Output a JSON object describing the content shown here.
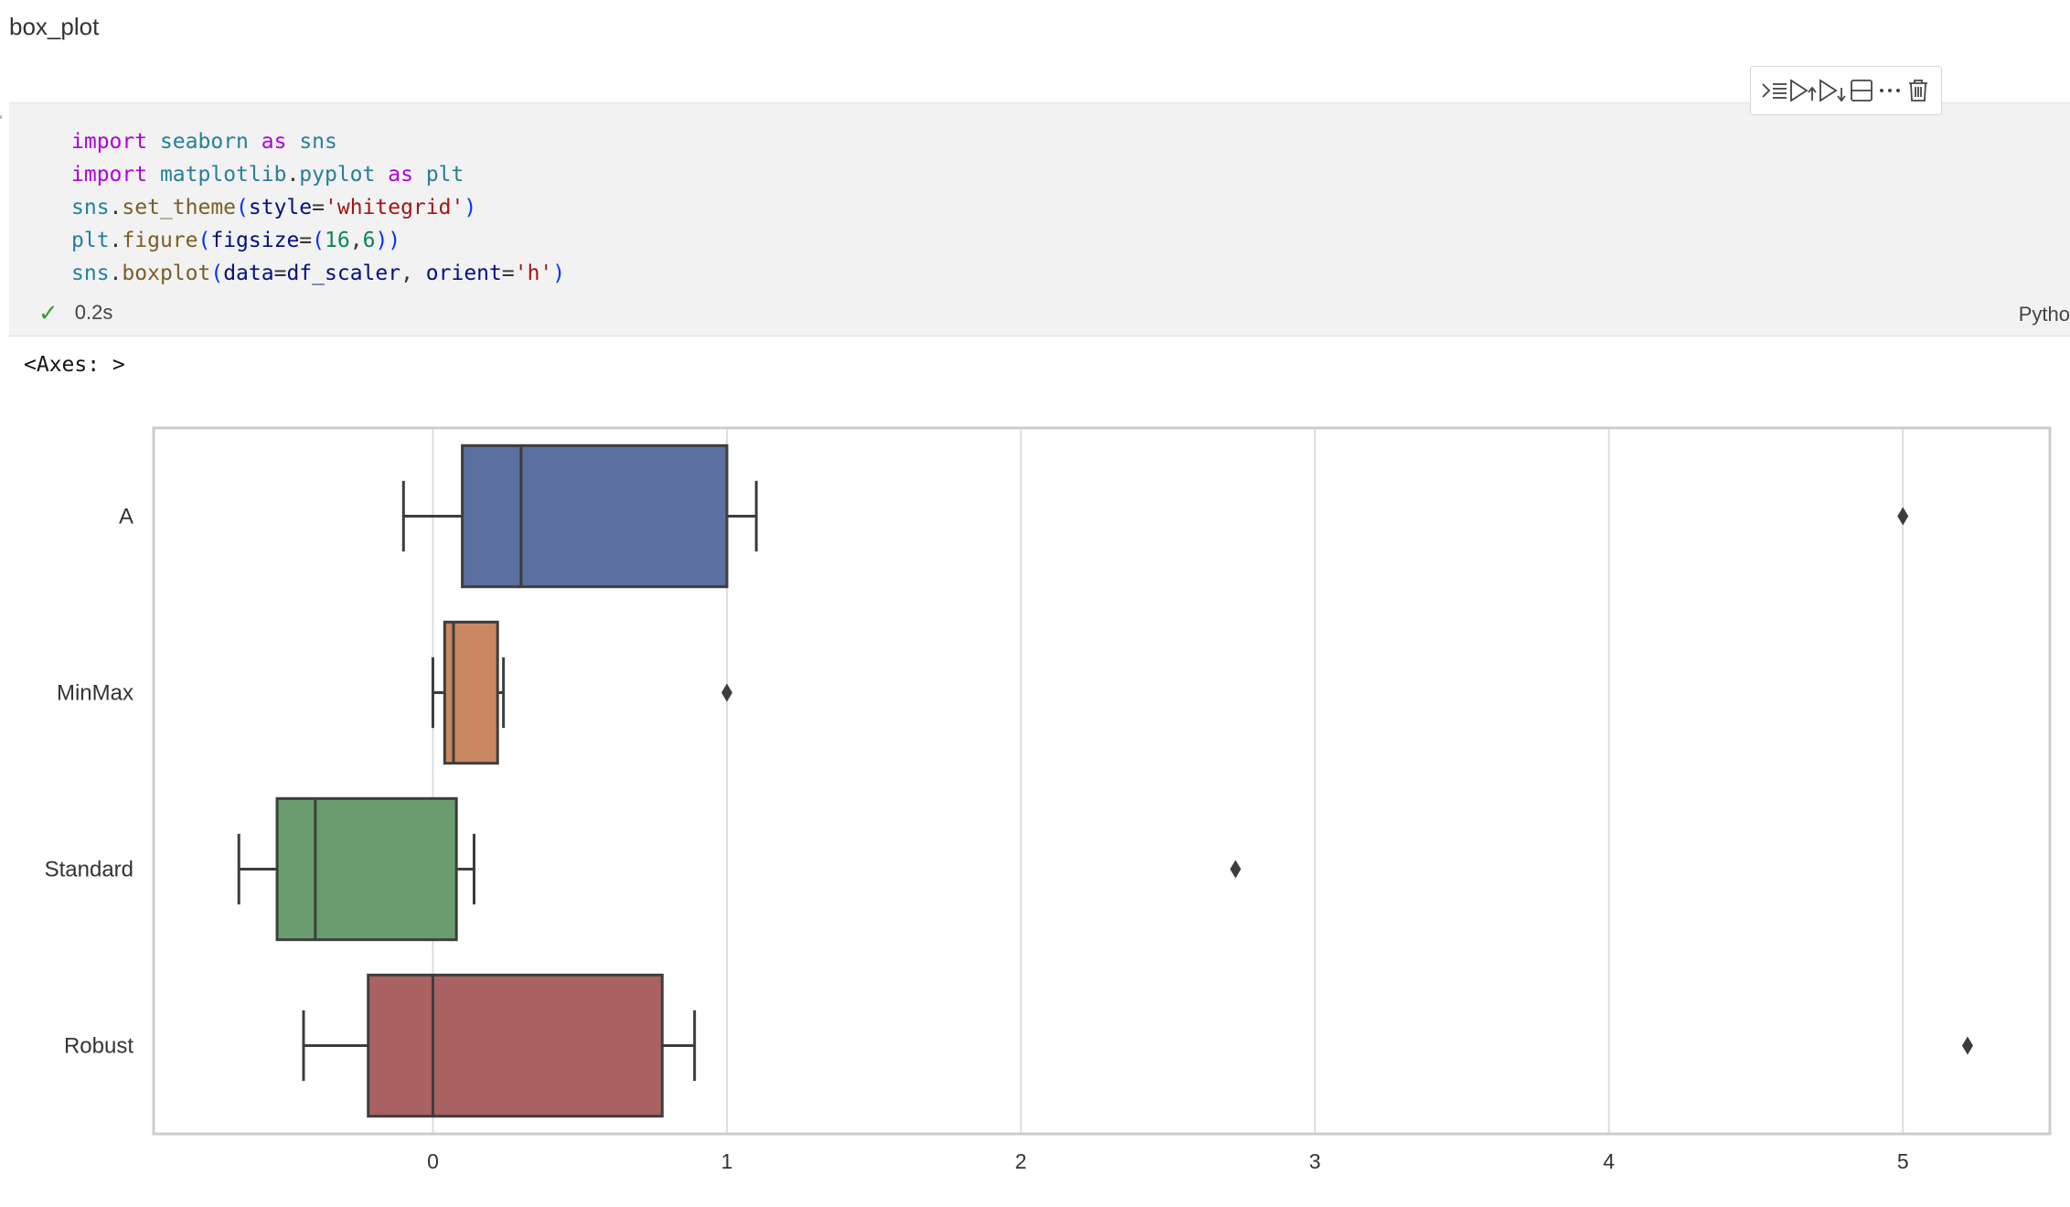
{
  "markdown": {
    "heading": "box_plot"
  },
  "cell": {
    "code_lines": [
      [
        {
          "t": "import",
          "c": "kw"
        },
        {
          "t": " "
        },
        {
          "t": "seaborn",
          "c": "mod"
        },
        {
          "t": " "
        },
        {
          "t": "as",
          "c": "kw"
        },
        {
          "t": " "
        },
        {
          "t": "sns",
          "c": "mod"
        }
      ],
      [
        {
          "t": "import",
          "c": "kw"
        },
        {
          "t": " "
        },
        {
          "t": "matplotlib",
          "c": "mod"
        },
        {
          "t": "."
        },
        {
          "t": "pyplot",
          "c": "mod"
        },
        {
          "t": " "
        },
        {
          "t": "as",
          "c": "kw"
        },
        {
          "t": " "
        },
        {
          "t": "plt",
          "c": "mod"
        }
      ],
      [
        {
          "t": "sns",
          "c": "mod"
        },
        {
          "t": "."
        },
        {
          "t": "set_theme",
          "c": "fn"
        },
        {
          "t": "(",
          "c": "pun"
        },
        {
          "t": "style",
          "c": "var"
        },
        {
          "t": "="
        },
        {
          "t": "'whitegrid'",
          "c": "str"
        },
        {
          "t": ")",
          "c": "pun"
        }
      ],
      [
        {
          "t": "plt",
          "c": "mod"
        },
        {
          "t": "."
        },
        {
          "t": "figure",
          "c": "fn"
        },
        {
          "t": "(",
          "c": "pun"
        },
        {
          "t": "figsize",
          "c": "var"
        },
        {
          "t": "="
        },
        {
          "t": "(",
          "c": "pun"
        },
        {
          "t": "16",
          "c": "num"
        },
        {
          "t": ","
        },
        {
          "t": "6",
          "c": "num"
        },
        {
          "t": "))",
          "c": "pun"
        }
      ],
      [
        {
          "t": "sns",
          "c": "mod"
        },
        {
          "t": "."
        },
        {
          "t": "boxplot",
          "c": "fn"
        },
        {
          "t": "(",
          "c": "pun"
        },
        {
          "t": "data",
          "c": "var"
        },
        {
          "t": "="
        },
        {
          "t": "df_scaler",
          "c": "var"
        },
        {
          "t": ", "
        },
        {
          "t": "orient",
          "c": "var"
        },
        {
          "t": "="
        },
        {
          "t": "'h'",
          "c": "str"
        },
        {
          "t": ")",
          "c": "pun"
        }
      ]
    ],
    "status_time": "0.2s",
    "language": "Pytho"
  },
  "toolbar": {
    "buttons": [
      {
        "name": "run-by-line-button",
        "icon": "run-by-line-icon"
      },
      {
        "name": "execute-above-button",
        "icon": "execute-above-icon"
      },
      {
        "name": "execute-below-button",
        "icon": "execute-below-icon"
      },
      {
        "name": "split-cell-button",
        "icon": "split-cell-icon"
      },
      {
        "name": "more-actions-button",
        "icon": "ellipsis-icon"
      },
      {
        "name": "delete-cell-button",
        "icon": "trash-icon"
      }
    ]
  },
  "output": {
    "label": "<Axes: >"
  },
  "chart_data": {
    "type": "boxplot",
    "orientation": "horizontal",
    "xlim": [
      -0.95,
      5.5
    ],
    "xticks": [
      0,
      1,
      2,
      3,
      4,
      5
    ],
    "grid": true,
    "series": [
      {
        "name": "A",
        "color": "#5b6fa0",
        "whisker_low": -0.1,
        "q1": 0.1,
        "median": 0.3,
        "q3": 1.0,
        "whisker_high": 1.1,
        "outliers": [
          5.0
        ]
      },
      {
        "name": "MinMax",
        "color": "#c98862",
        "whisker_low": 0.0,
        "q1": 0.04,
        "median": 0.07,
        "q3": 0.22,
        "whisker_high": 0.24,
        "outliers": [
          1.0
        ]
      },
      {
        "name": "Standard",
        "color": "#6b9c6f",
        "whisker_low": -0.66,
        "q1": -0.53,
        "median": -0.4,
        "q3": 0.08,
        "whisker_high": 0.14,
        "outliers": [
          2.73
        ]
      },
      {
        "name": "Robust",
        "color": "#a96161",
        "whisker_low": -0.44,
        "q1": -0.22,
        "median": 0.0,
        "q3": 0.78,
        "whisker_high": 0.89,
        "outliers": [
          5.22
        ]
      }
    ]
  }
}
